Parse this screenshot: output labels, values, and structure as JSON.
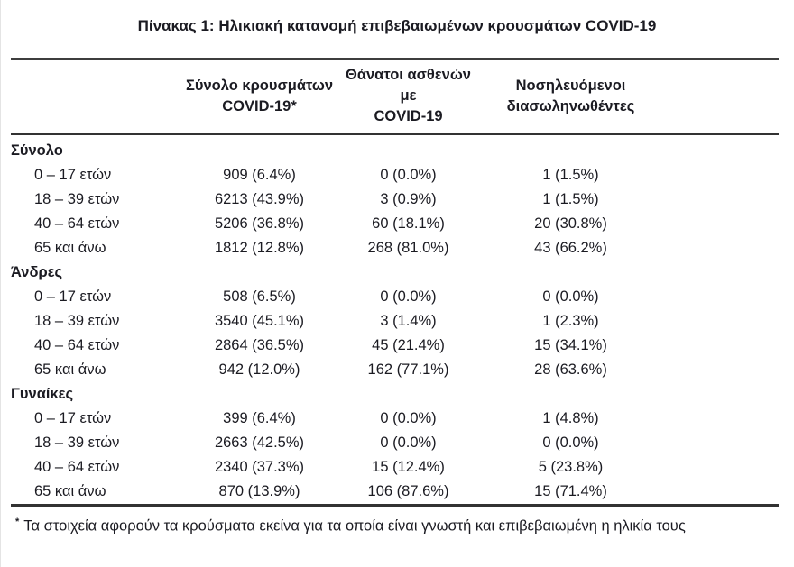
{
  "chart_data": {
    "type": "table",
    "title": "Πίνακας 1: Ηλικιακή κατανομή επιβεβαιωμένων κρουσμάτων COVID-19",
    "column_headers": [
      {
        "line1": "Σύνολο κρουσμάτων",
        "line2": "COVID-19*"
      },
      {
        "line1": "Θάνατοι ασθενών με",
        "line2": "COVID-19"
      },
      {
        "line1": "Νοσηλευόμενοι",
        "line2": "διασωληνωθέντες"
      }
    ],
    "sections": [
      {
        "name": "Σύνολο",
        "rows": [
          {
            "age": "0 – 17 ετών",
            "cases": "909 (6.4%)",
            "deaths": "0 (0.0%)",
            "intubated": "1 (1.5%)"
          },
          {
            "age": "18 – 39 ετών",
            "cases": "6213 (43.9%)",
            "deaths": "3 (0.9%)",
            "intubated": "1 (1.5%)"
          },
          {
            "age": "40 – 64 ετών",
            "cases": "5206 (36.8%)",
            "deaths": "60 (18.1%)",
            "intubated": "20 (30.8%)"
          },
          {
            "age": "65 και άνω",
            "cases": "1812 (12.8%)",
            "deaths": "268 (81.0%)",
            "intubated": "43 (66.2%)"
          }
        ]
      },
      {
        "name": "Άνδρες",
        "rows": [
          {
            "age": "0 – 17 ετών",
            "cases": "508 (6.5%)",
            "deaths": "0 (0.0%)",
            "intubated": "0 (0.0%)"
          },
          {
            "age": "18 – 39 ετών",
            "cases": "3540 (45.1%)",
            "deaths": "3 (1.4%)",
            "intubated": "1 (2.3%)"
          },
          {
            "age": "40 – 64 ετών",
            "cases": "2864 (36.5%)",
            "deaths": "45 (21.4%)",
            "intubated": "15 (34.1%)"
          },
          {
            "age": "65 και άνω",
            "cases": "942 (12.0%)",
            "deaths": "162 (77.1%)",
            "intubated": "28 (63.6%)"
          }
        ]
      },
      {
        "name": "Γυναίκες",
        "rows": [
          {
            "age": "0 – 17 ετών",
            "cases": "399 (6.4%)",
            "deaths": "0 (0.0%)",
            "intubated": "1 (4.8%)"
          },
          {
            "age": "18 – 39 ετών",
            "cases": "2663 (42.5%)",
            "deaths": "0 (0.0%)",
            "intubated": "0 (0.0%)"
          },
          {
            "age": "40 – 64 ετών",
            "cases": "2340 (37.3%)",
            "deaths": "15 (12.4%)",
            "intubated": "5 (23.8%)"
          },
          {
            "age": "65 και άνω",
            "cases": "870 (13.9%)",
            "deaths": "106 (87.6%)",
            "intubated": "15 (71.4%)"
          }
        ]
      }
    ],
    "footnote_marker": "*",
    "footnote": "Τα στοιχεία αφορούν τα κρούσματα εκείνα για τα οποία είναι γνωστή και επιβεβαιωμένη η ηλικία τους"
  },
  "colors": {
    "background": "#ffffff",
    "text": "#1b1b22",
    "rule": "#323232"
  }
}
